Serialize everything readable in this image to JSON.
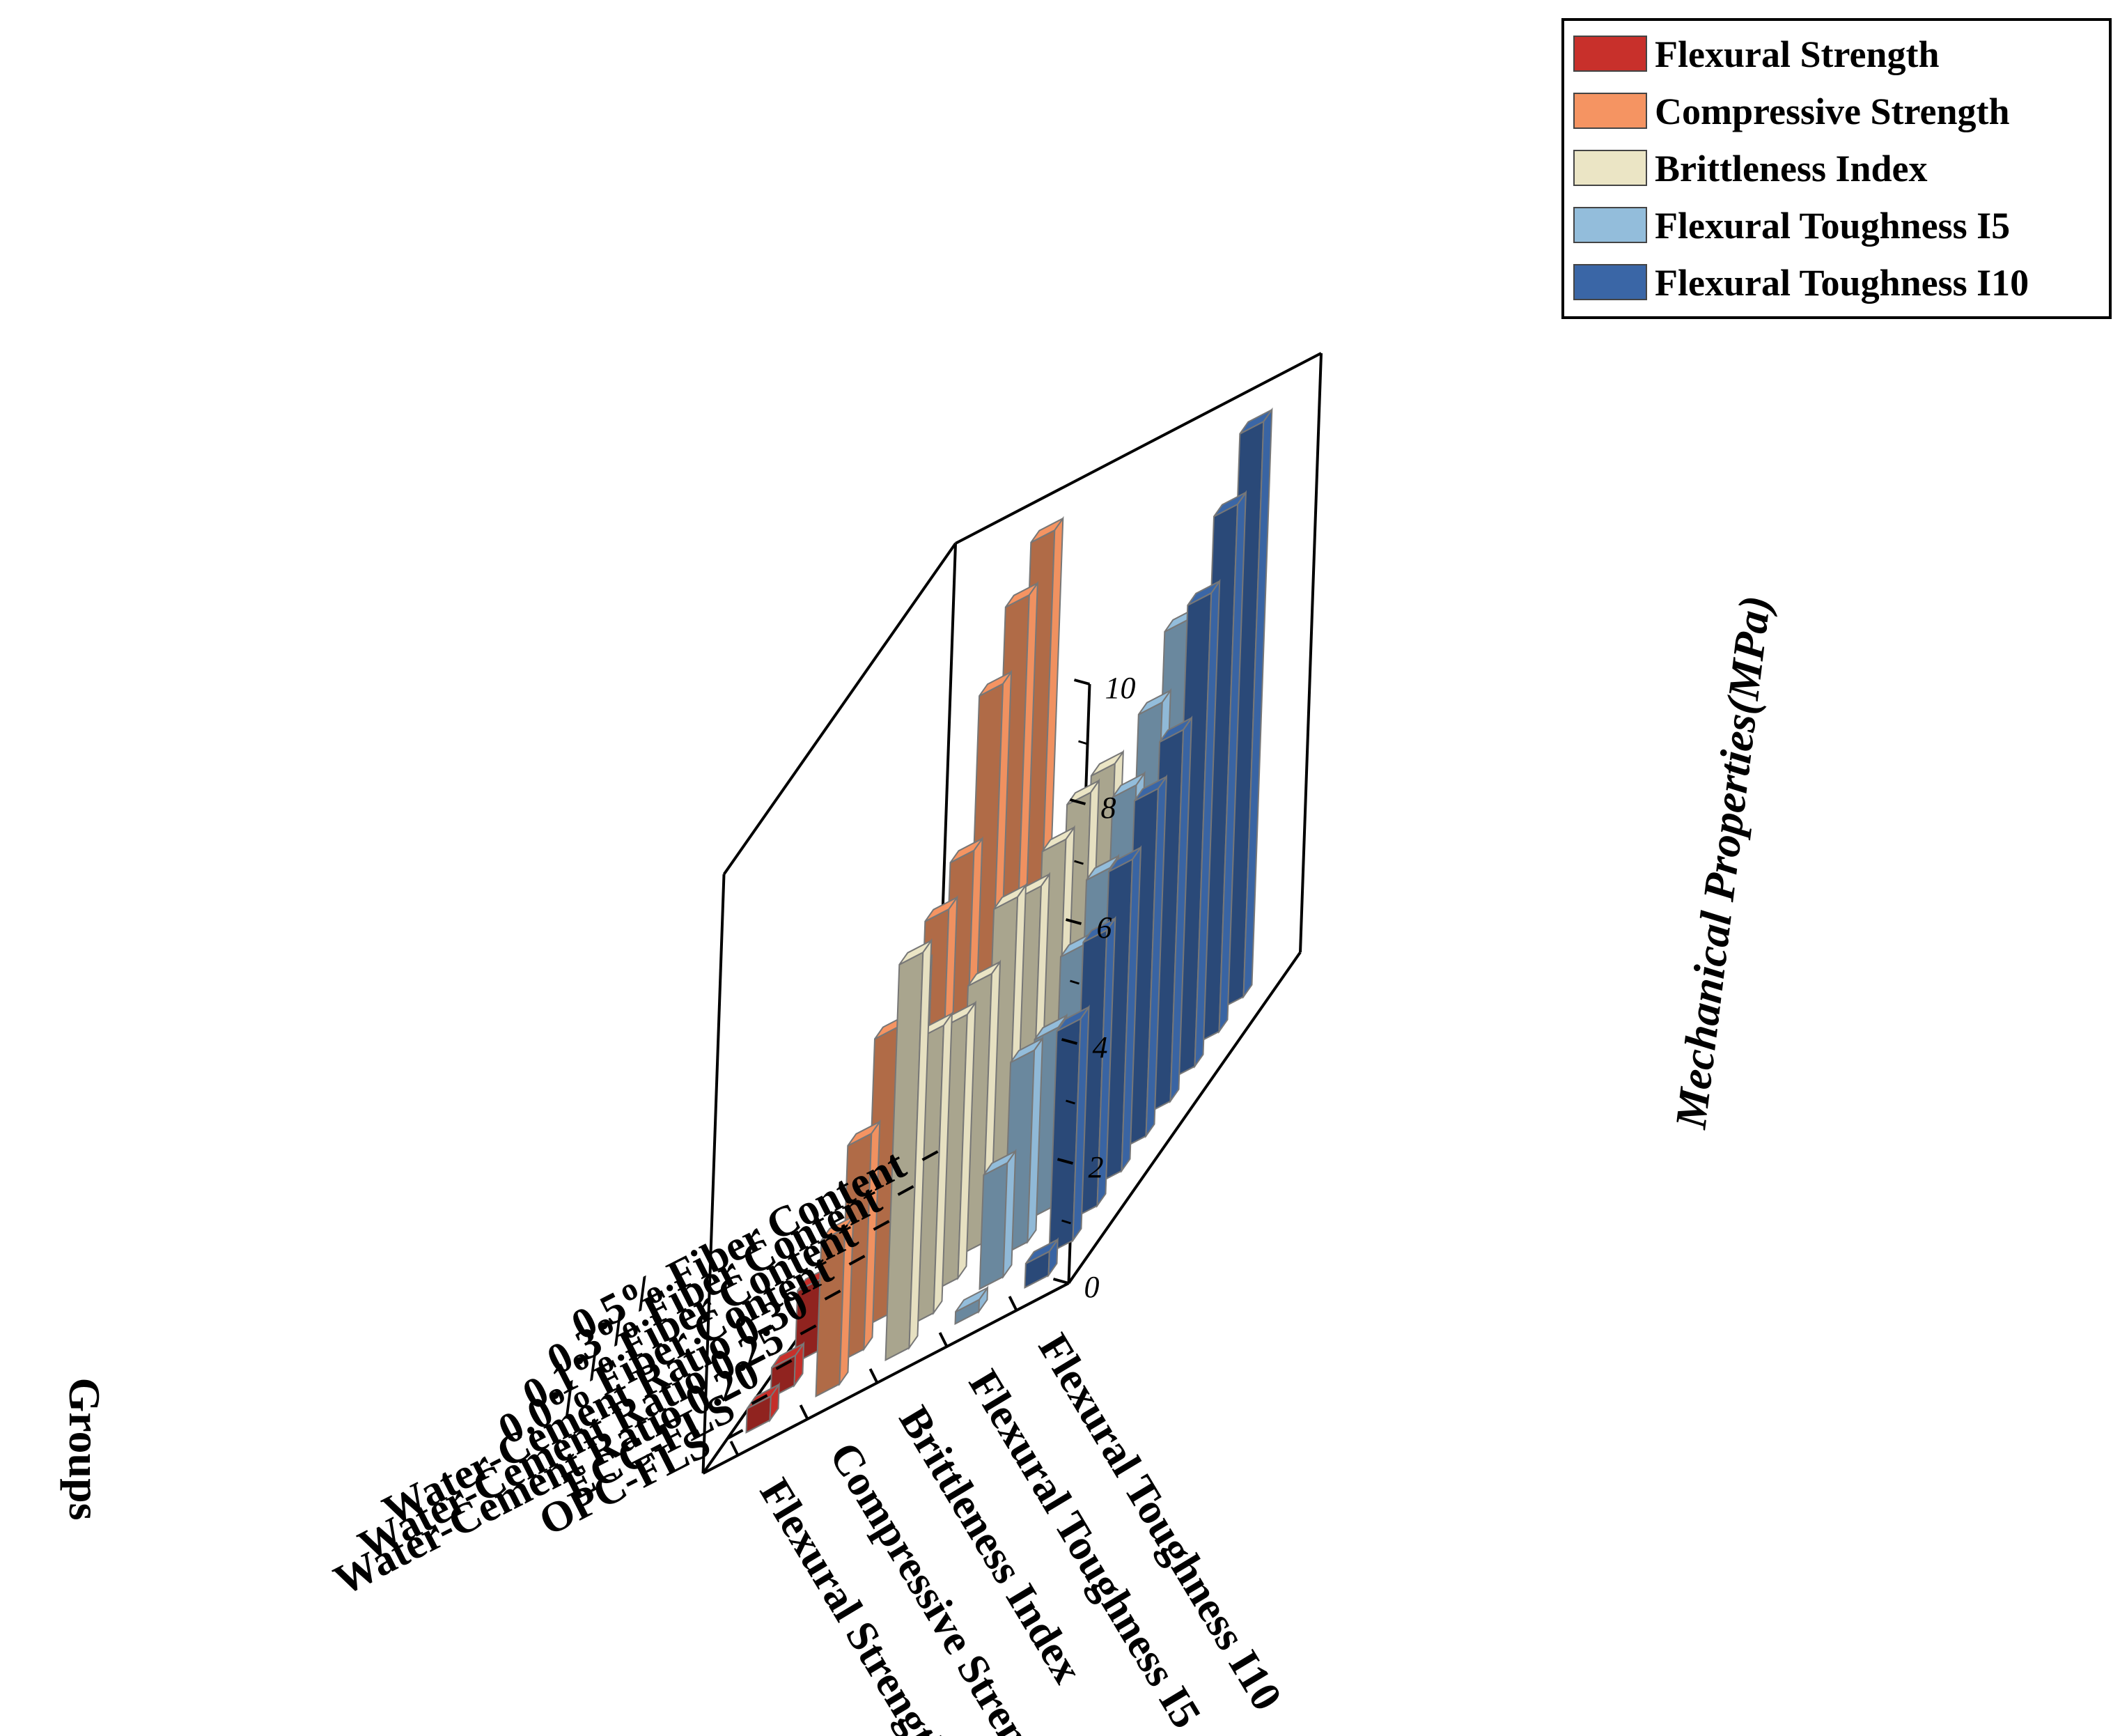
{
  "chart_data": {
    "type": "bar3d",
    "zlabel": "Mechanical Properties(MPa)",
    "zlim": [
      0,
      10
    ],
    "zticks": [
      0,
      2,
      4,
      6,
      8,
      10
    ],
    "group_axis_label": "Groups",
    "groups": [
      "0.5% Fiber Content",
      "0.3% Fiber Content",
      "0.1% Fiber Content",
      "0.0% Fiber Content",
      "Water-Cement Ratio 0.30",
      "Water-Cement Ratio 0.25",
      "Water-Cement Ratio 0.20",
      "ECC-FLS",
      "OPC-FLS"
    ],
    "properties": [
      "Flexural Strength",
      "Compressive Strength",
      "Brittleness Index",
      "Flexural Toughness I5",
      "Flexural Toughness I10"
    ],
    "series": [
      {
        "name": "Flexural Strength",
        "color": "#C8302B",
        "values": [
          1.8,
          1.6,
          1.4,
          1.2,
          1.0,
          1.0,
          1.2,
          0.5,
          0.4
        ]
      },
      {
        "name": "Compressive Strength",
        "color": "#F59462",
        "values": [
          9.6,
          9.1,
          8.2,
          6.0,
          5.6,
          5.2,
          4.8,
          3.6,
          2.6
        ]
      },
      {
        "name": "Brittleness Index",
        "color": "#EBE5C5",
        "values": [
          5.1,
          5.2,
          5.0,
          4.8,
          5.2,
          4.5,
          4.4,
          4.8,
          6.6
        ]
      },
      {
        "name": "Flexural Toughness I5",
        "color": "#93BDDB",
        "values": [
          6.9,
          6.1,
          5.3,
          4.5,
          3.8,
          3.0,
          3.2,
          1.9,
          0.2
        ]
      },
      {
        "name": "Flexural Toughness I10",
        "color": "#3A66A6",
        "values": [
          9.6,
          8.8,
          7.9,
          6.2,
          5.8,
          5.2,
          4.6,
          3.7,
          0.4
        ]
      }
    ],
    "legend": {
      "position": "top-right",
      "entries": [
        "Flexural Strength",
        "Compressive Strength",
        "Brittleness Index",
        "Flexural Toughness I5",
        "Flexural Toughness I10"
      ]
    }
  }
}
